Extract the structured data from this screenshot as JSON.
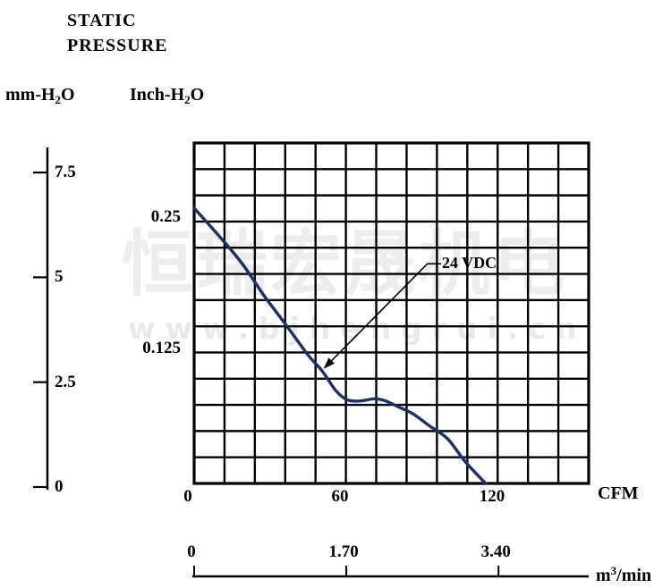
{
  "title_lines": [
    "STATIC",
    "PRESSURE"
  ],
  "unit_labels": {
    "left": {
      "base": "mm-H",
      "sub": "2",
      "end": "O"
    },
    "right": {
      "base": "Inch-H",
      "sub": "2",
      "end": "O"
    }
  },
  "x_secondary_unit": {
    "base": "m",
    "sup": "3",
    "end": "/min"
  },
  "watermark": {
    "cjk": "恒瑞宏晟机电",
    "url": "www.bjhengrui.cn"
  },
  "colors": {
    "curve": "#1a3268",
    "grid": "#000000",
    "text": "#000000",
    "watermark": "#ededed"
  },
  "chart_data": {
    "type": "line",
    "title": "STATIC PRESSURE",
    "grid": {
      "cols": 13,
      "rows": 13,
      "on": true
    },
    "x_axis": {
      "label": "CFM",
      "ticks": [
        {
          "label": "0",
          "value": 0
        },
        {
          "label": "60",
          "value": 60
        },
        {
          "label": "120",
          "value": 120
        }
      ],
      "range_cfm": [
        0,
        156
      ]
    },
    "x_axis_secondary": {
      "label": "m3/min",
      "ticks": [
        {
          "label": "0",
          "value": 0
        },
        {
          "label": "1.70",
          "value": 1.7
        },
        {
          "label": "3.40",
          "value": 3.4
        }
      ]
    },
    "y_axis_left": {
      "label": "mm-H2O",
      "ticks": [
        {
          "label": "0",
          "value": 0
        },
        {
          "label": "2.5",
          "value": 2.5
        },
        {
          "label": "5",
          "value": 5
        },
        {
          "label": "7.5",
          "value": 7.5
        }
      ],
      "range_mm": [
        0,
        8.1
      ]
    },
    "y_axis_inner": {
      "label": "Inch-H2O",
      "ticks": [
        {
          "label": "0.125",
          "value": 0.125
        },
        {
          "label": "0.25",
          "value": 0.25
        }
      ],
      "range_inch": [
        0,
        0.325
      ]
    },
    "series": [
      {
        "name": "24 VDC",
        "color": "#1a3268",
        "points_cfm_inch": [
          [
            0,
            0.262
          ],
          [
            10,
            0.235
          ],
          [
            19,
            0.209
          ],
          [
            27.5,
            0.179
          ],
          [
            36.5,
            0.15
          ],
          [
            45,
            0.122
          ],
          [
            50.5,
            0.107
          ],
          [
            56,
            0.088
          ],
          [
            60.5,
            0.0795
          ],
          [
            65.5,
            0.0785
          ],
          [
            71,
            0.0805
          ],
          [
            75,
            0.079
          ],
          [
            80.5,
            0.073
          ],
          [
            86.5,
            0.066
          ],
          [
            93,
            0.0545
          ],
          [
            100,
            0.0425
          ],
          [
            107,
            0.0205
          ],
          [
            115,
            0
          ]
        ]
      }
    ],
    "annotation": {
      "label": "24 VDC",
      "arrow_tip": {
        "cfm": 51,
        "inch": 0.109
      },
      "elbow": {
        "cfm": 92,
        "inch": 0.209
      },
      "label_anchor": {
        "cfm": 97.4,
        "inch": 0.209
      }
    }
  }
}
